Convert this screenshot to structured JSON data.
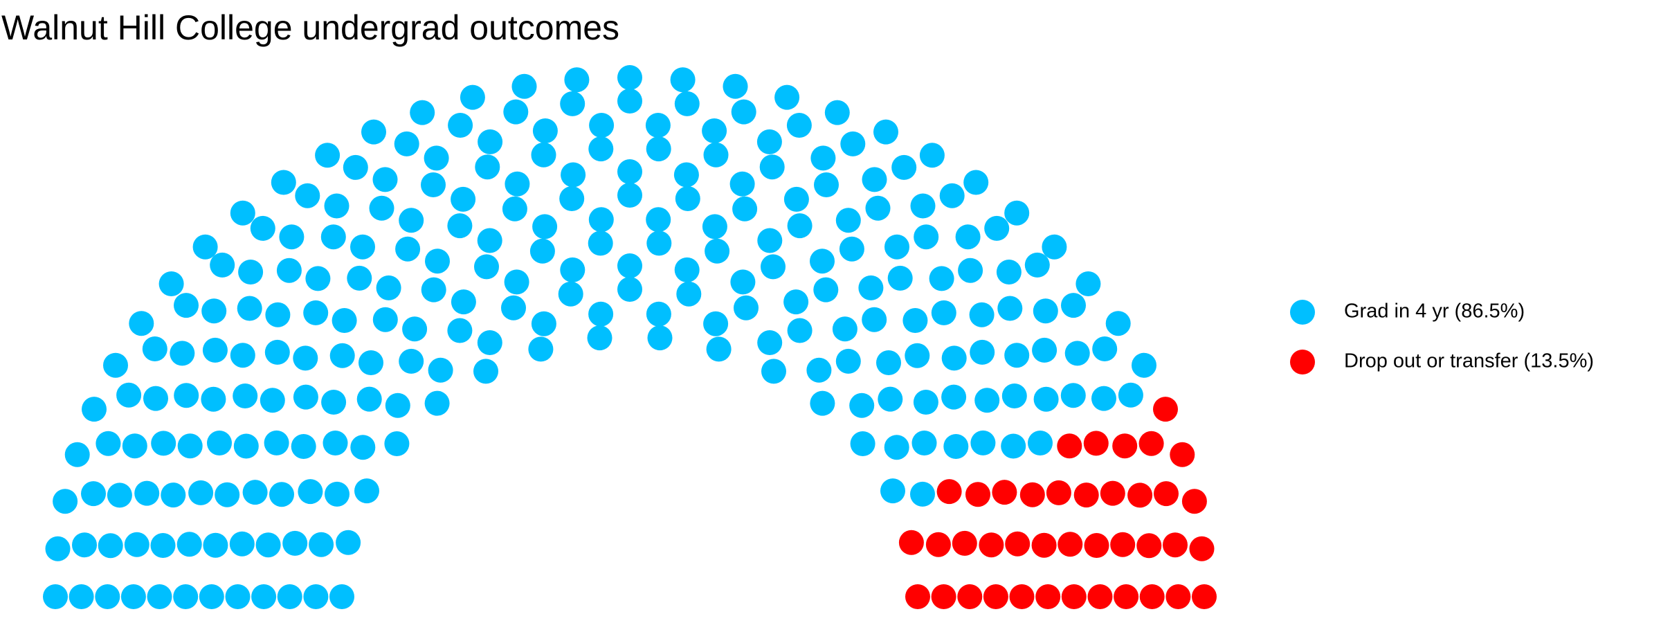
{
  "chart_data": {
    "type": "parliament",
    "title": "Walnut Hill College undergrad outcomes",
    "series": [
      {
        "name": "Grad in 4 yr (86.5%)",
        "color": "#00bfff",
        "values": [
          86.5
        ]
      },
      {
        "name": "Drop out or transfer (13.5%)",
        "color": "#ff0000",
        "values": [
          13.5
        ]
      }
    ],
    "legend": "right"
  }
}
